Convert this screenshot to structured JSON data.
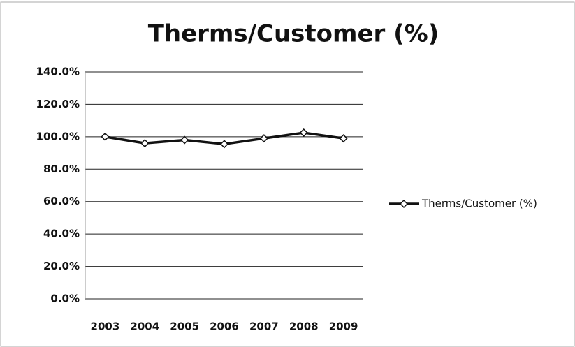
{
  "chart_data": {
    "type": "line",
    "title": "Therms/Customer (%)",
    "categories": [
      "2003",
      "2004",
      "2005",
      "2006",
      "2007",
      "2008",
      "2009"
    ],
    "series": [
      {
        "name": "Therms/Customer (%)",
        "color": "#111111",
        "values": [
          100,
          96,
          98,
          95.5,
          99,
          102.5,
          99
        ]
      }
    ],
    "ylim": [
      0,
      140
    ],
    "yticks": [
      {
        "value": 0,
        "label": "0.0%"
      },
      {
        "value": 20,
        "label": "20.0%"
      },
      {
        "value": 40,
        "label": "40.0%"
      },
      {
        "value": 60,
        "label": "60.0%"
      },
      {
        "value": 80,
        "label": "80.0%"
      },
      {
        "value": 100,
        "label": "100.0%"
      },
      {
        "value": 120,
        "label": "120.0%"
      },
      {
        "value": 140,
        "label": "140.0%"
      }
    ],
    "grid": true,
    "legend": "right"
  }
}
